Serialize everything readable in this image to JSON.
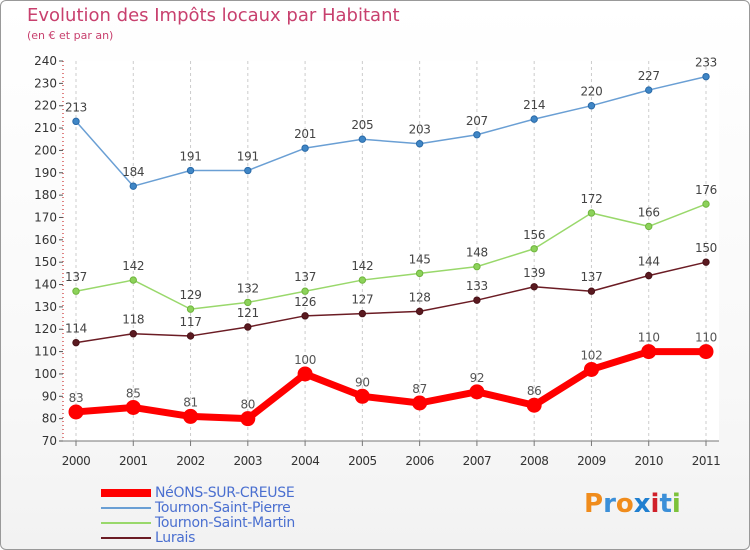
{
  "title": "Evolution des Impôts locaux par Habitant",
  "subtitle": "(en € et par an)",
  "brand": {
    "letters": [
      "P",
      "r",
      "o",
      "x",
      "i",
      "t",
      "i"
    ],
    "colors": [
      "#f08c1c",
      "#3b8fd8",
      "#f08c1c",
      "#1f7fd0",
      "#d0202a",
      "#3b8fd8",
      "#7cc23a"
    ]
  },
  "chart_data": {
    "type": "line",
    "x": [
      2000,
      2001,
      2002,
      2003,
      2004,
      2005,
      2006,
      2007,
      2008,
      2009,
      2010,
      2011
    ],
    "ylim": [
      70,
      240
    ],
    "yticks": [
      70,
      80,
      90,
      100,
      110,
      120,
      130,
      140,
      150,
      160,
      170,
      180,
      190,
      200,
      210,
      220,
      230,
      240
    ],
    "grid": "vertical dashed",
    "legend_position": "bottom-left",
    "series": [
      {
        "name": "NéONS-SUR-CREUSE",
        "color": "#ff0000",
        "values": [
          83,
          85,
          81,
          80,
          100,
          90,
          87,
          92,
          86,
          102,
          110,
          110
        ]
      },
      {
        "name": "Tournon-Saint-Pierre",
        "color": "#6a9fd4",
        "values": [
          213,
          184,
          191,
          191,
          201,
          205,
          203,
          207,
          214,
          220,
          227,
          233
        ]
      },
      {
        "name": "Tournon-Saint-Martin",
        "color": "#99d86b",
        "values": [
          137,
          142,
          129,
          132,
          137,
          142,
          145,
          148,
          156,
          172,
          166,
          176
        ]
      },
      {
        "name": "Lurais",
        "color": "#6b1c24",
        "values": [
          114,
          118,
          117,
          121,
          126,
          127,
          128,
          133,
          139,
          137,
          144,
          150
        ]
      }
    ]
  }
}
